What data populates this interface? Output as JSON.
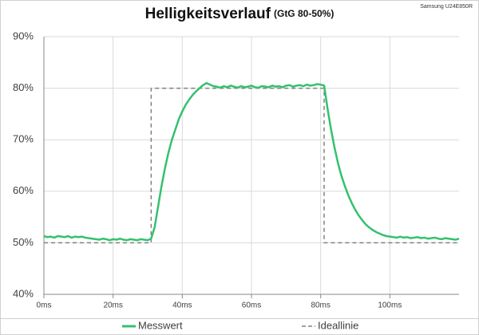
{
  "chart_data": {
    "type": "line",
    "title": "Helligkeitsverlauf",
    "subtitle": "(GtG 80-50%)",
    "note": "Samsung U24E850R",
    "xlim": [
      0,
      120
    ],
    "xticks": [
      {
        "value": 0,
        "label": "0ms"
      },
      {
        "value": 20,
        "label": "20ms"
      },
      {
        "value": 40,
        "label": "40ms"
      },
      {
        "value": 60,
        "label": "60ms"
      },
      {
        "value": 80,
        "label": "80ms"
      },
      {
        "value": 100,
        "label": "100ms"
      }
    ],
    "ylim": [
      40,
      90
    ],
    "yticks": [
      {
        "value": 40,
        "label": "40%"
      },
      {
        "value": 50,
        "label": "50%"
      },
      {
        "value": 60,
        "label": "60%"
      },
      {
        "value": 70,
        "label": "70%"
      },
      {
        "value": 80,
        "label": "80%"
      },
      {
        "value": 90,
        "label": "90%"
      }
    ],
    "grid": true,
    "legend": "bottom",
    "series": [
      {
        "name": "Messwert",
        "color": "#33c16f",
        "dash": false,
        "x": [
          0,
          1,
          2,
          3,
          4,
          5,
          6,
          7,
          8,
          9,
          10,
          11,
          12,
          13,
          14,
          15,
          16,
          17,
          18,
          19,
          20,
          21,
          22,
          23,
          24,
          25,
          26,
          27,
          28,
          29,
          30,
          31,
          32,
          33,
          34,
          35,
          36,
          37,
          38,
          39,
          40,
          41,
          42,
          43,
          44,
          45,
          46,
          47,
          48,
          49,
          50,
          51,
          52,
          53,
          54,
          55,
          56,
          57,
          58,
          59,
          60,
          61,
          62,
          63,
          64,
          65,
          66,
          67,
          68,
          69,
          70,
          71,
          72,
          73,
          74,
          75,
          76,
          77,
          78,
          79,
          80,
          81,
          82,
          83,
          84,
          85,
          86,
          87,
          88,
          89,
          90,
          91,
          92,
          93,
          94,
          95,
          96,
          97,
          98,
          99,
          100,
          101,
          102,
          103,
          104,
          105,
          106,
          107,
          108,
          109,
          110,
          111,
          112,
          113,
          114,
          115,
          116,
          117,
          118,
          119,
          120
        ],
        "values": [
          51.3,
          51.1,
          51.2,
          51.0,
          51.3,
          51.2,
          51.1,
          51.3,
          51.0,
          51.2,
          51.1,
          51.2,
          51.0,
          50.9,
          50.8,
          50.7,
          50.6,
          50.8,
          50.7,
          50.5,
          50.7,
          50.6,
          50.8,
          50.6,
          50.5,
          50.7,
          50.6,
          50.5,
          50.7,
          50.6,
          50.5,
          50.8,
          53,
          57,
          61,
          64.5,
          67.5,
          70,
          72,
          74,
          75.5,
          76.8,
          77.8,
          78.7,
          79.4,
          80,
          80.6,
          81,
          80.7,
          80.4,
          80.3,
          80.1,
          80.4,
          80.2,
          80.5,
          80.3,
          80.1,
          80.4,
          80.2,
          80.3,
          80.5,
          80.2,
          80.1,
          80.4,
          80.3,
          80.2,
          80.5,
          80.3,
          80.4,
          80.2,
          80.5,
          80.6,
          80.3,
          80.5,
          80.6,
          80.4,
          80.7,
          80.5,
          80.6,
          80.8,
          80.7,
          80.5,
          76,
          72,
          68.5,
          65.5,
          63,
          61,
          59.2,
          57.7,
          56.4,
          55.3,
          54.4,
          53.6,
          53,
          52.5,
          52.1,
          51.8,
          51.5,
          51.3,
          51.2,
          51.1,
          51.0,
          51.2,
          51.0,
          51.1,
          50.9,
          51.0,
          51.1,
          50.9,
          51.0,
          50.8,
          50.9,
          51.0,
          50.8,
          50.7,
          50.9,
          50.8,
          50.7,
          50.6,
          50.8
        ]
      },
      {
        "name": "Ideallinie",
        "color": "#808080",
        "dash": true,
        "x": [
          0,
          31,
          31,
          81,
          81,
          120
        ],
        "values": [
          50,
          50,
          80,
          80,
          50,
          50
        ]
      }
    ]
  }
}
